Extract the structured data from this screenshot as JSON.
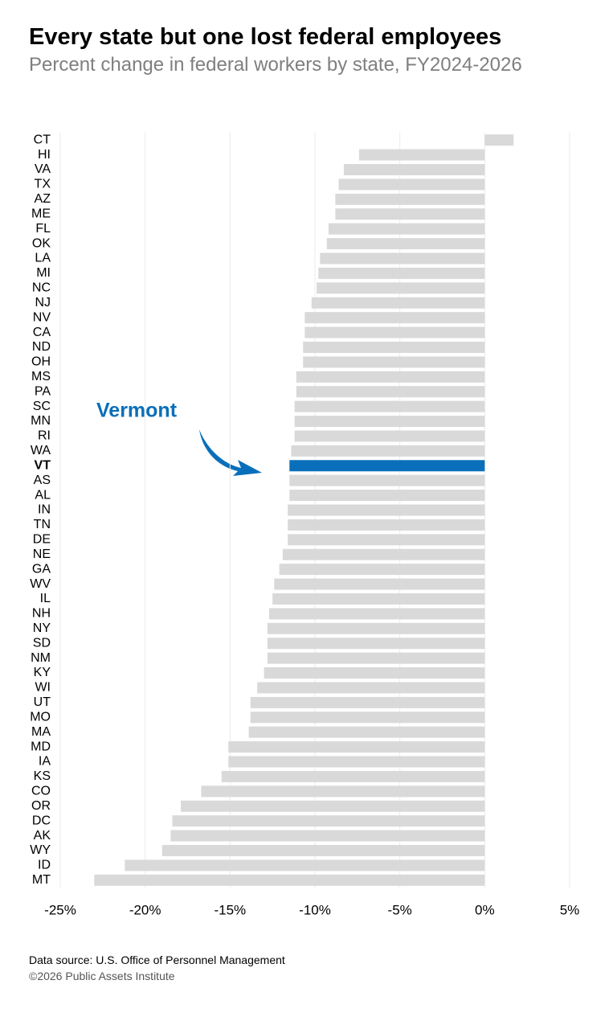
{
  "chart_data": {
    "type": "bar",
    "orientation": "horizontal",
    "title": "Every state but one lost federal employees",
    "subtitle": "Percent change in federal workers by state, FY2024-2026",
    "categories": [
      "CT",
      "HI",
      "VA",
      "TX",
      "AZ",
      "ME",
      "FL",
      "OK",
      "LA",
      "MI",
      "NC",
      "NJ",
      "NV",
      "CA",
      "ND",
      "OH",
      "MS",
      "PA",
      "SC",
      "MN",
      "RI",
      "WA",
      "VT",
      "AS",
      "AL",
      "IN",
      "TN",
      "DE",
      "NE",
      "GA",
      "WV",
      "IL",
      "NH",
      "NY",
      "SD",
      "NM",
      "KY",
      "WI",
      "UT",
      "MO",
      "MA",
      "MD",
      "IA",
      "KS",
      "CO",
      "OR",
      "DC",
      "AK",
      "WY",
      "ID",
      "MT"
    ],
    "values": [
      1.7,
      -7.4,
      -8.3,
      -8.6,
      -8.8,
      -8.8,
      -9.2,
      -9.3,
      -9.7,
      -9.8,
      -9.9,
      -10.2,
      -10.6,
      -10.6,
      -10.7,
      -10.7,
      -11.1,
      -11.1,
      -11.2,
      -11.2,
      -11.2,
      -11.4,
      -11.5,
      -11.5,
      -11.5,
      -11.6,
      -11.6,
      -11.6,
      -11.9,
      -12.1,
      -12.4,
      -12.5,
      -12.7,
      -12.8,
      -12.8,
      -12.8,
      -13.0,
      -13.4,
      -13.8,
      -13.8,
      -13.9,
      -15.1,
      -15.1,
      -15.5,
      -16.7,
      -17.9,
      -18.4,
      -18.5,
      -19.0,
      -21.2,
      -23.0
    ],
    "color": "#d9d9d9",
    "highlight_color": "#0a6fba",
    "colors": [
      "#d9d9d9",
      "#d9d9d9",
      "#d9d9d9",
      "#d9d9d9",
      "#d9d9d9",
      "#d9d9d9",
      "#d9d9d9",
      "#d9d9d9",
      "#d9d9d9",
      "#d9d9d9",
      "#d9d9d9",
      "#d9d9d9",
      "#d9d9d9",
      "#d9d9d9",
      "#d9d9d9",
      "#d9d9d9",
      "#d9d9d9",
      "#d9d9d9",
      "#d9d9d9",
      "#d9d9d9",
      "#d9d9d9",
      "#d9d9d9",
      "#0a6fba",
      "#d9d9d9",
      "#d9d9d9",
      "#d9d9d9",
      "#d9d9d9",
      "#d9d9d9",
      "#d9d9d9",
      "#d9d9d9",
      "#d9d9d9",
      "#d9d9d9",
      "#d9d9d9",
      "#d9d9d9",
      "#d9d9d9",
      "#d9d9d9",
      "#d9d9d9",
      "#d9d9d9",
      "#d9d9d9",
      "#d9d9d9",
      "#d9d9d9",
      "#d9d9d9",
      "#d9d9d9",
      "#d9d9d9",
      "#d9d9d9",
      "#d9d9d9",
      "#d9d9d9",
      "#d9d9d9",
      "#d9d9d9",
      "#d9d9d9",
      "#d9d9d9"
    ],
    "xlim": [
      -25,
      5
    ],
    "xticks": [
      {
        "value": -25,
        "label": "-25%"
      },
      {
        "value": -20,
        "label": "-20%"
      },
      {
        "value": -15,
        "label": "-15%"
      },
      {
        "value": -10,
        "label": "-10%"
      },
      {
        "value": -5,
        "label": "-5%"
      },
      {
        "value": 0,
        "label": "0%"
      },
      {
        "value": 5,
        "label": "5%"
      }
    ],
    "grid": true,
    "annotation": "Vermont",
    "source": "Data source: U.S. Office of Personnel Management",
    "copyright": "©2026 Public Assets Institute"
  }
}
